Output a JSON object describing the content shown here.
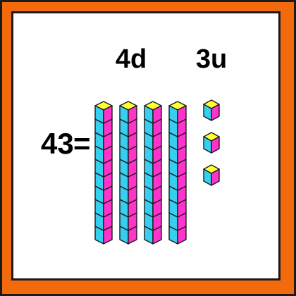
{
  "number": {
    "text": "43",
    "equals": "=",
    "tens_label": "4d",
    "units_label": "3u"
  },
  "blocks": {
    "tens_rods": 4,
    "cubes_per_rod": 10,
    "unit_cubes": 3
  },
  "colors": {
    "frame_orange": "#f26a0c",
    "outline": "#1a1a1a",
    "cube_top": "#ffff33",
    "cube_left": "#35d0f0",
    "cube_right": "#ff33cc"
  }
}
